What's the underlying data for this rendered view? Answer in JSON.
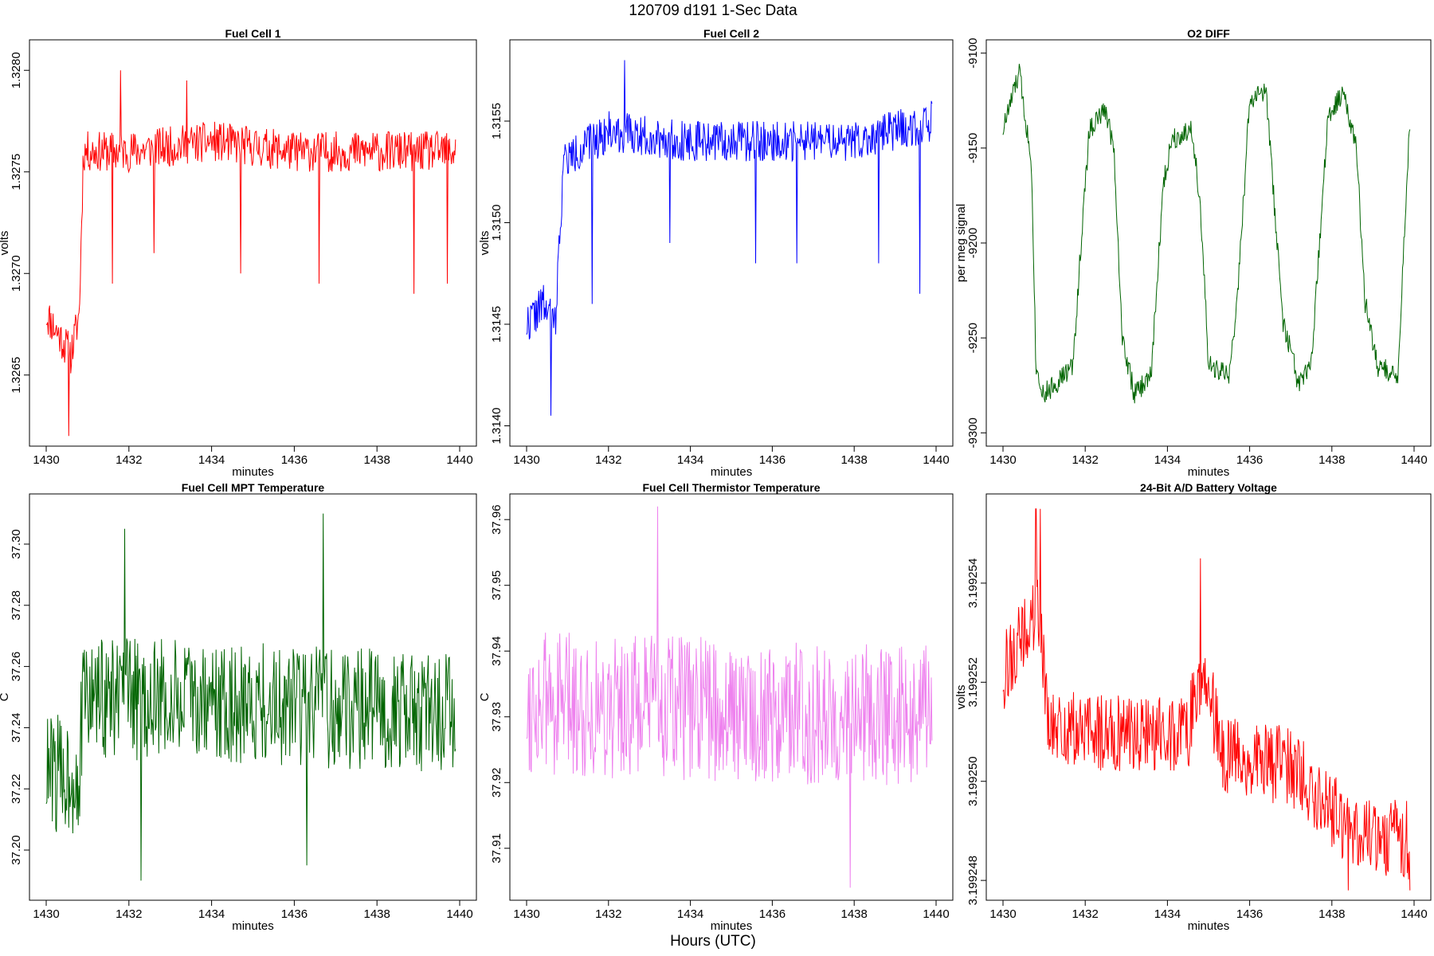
{
  "figure": {
    "suptitle": "120709   d191   1-Sec Data",
    "xlabel_main": "Hours (UTC)"
  },
  "chart_data": [
    {
      "type": "line",
      "title": "Fuel Cell 1",
      "xlabel": "minutes",
      "ylabel": "volts",
      "color": "#ff0000",
      "xlim": [
        1430,
        1440
      ],
      "ylim": [
        1.32615,
        1.32815
      ],
      "xticks": [
        1430,
        1432,
        1434,
        1436,
        1438,
        1440
      ],
      "yticks": [
        1.3265,
        1.327,
        1.3275,
        1.328
      ],
      "ytick_labels": [
        "1.3265",
        "1.3270",
        "1.3275",
        "1.3280"
      ],
      "anchors": [
        [
          1430,
          1.3268
        ],
        [
          1430.3,
          1.3267
        ],
        [
          1430.6,
          1.3266
        ],
        [
          1430.8,
          1.3268
        ],
        [
          1430.9,
          1.3276
        ],
        [
          1432,
          1.3276
        ],
        [
          1434,
          1.32765
        ],
        [
          1436,
          1.3276
        ],
        [
          1438,
          1.3276
        ],
        [
          1439.9,
          1.3276
        ]
      ],
      "noise": 0.0001,
      "seed": 11,
      "spikes": [
        [
          1430.55,
          1.3262
        ],
        [
          1431.6,
          1.32695
        ],
        [
          1432.6,
          1.3271
        ],
        [
          1434.7,
          1.327
        ],
        [
          1436.6,
          1.32695
        ],
        [
          1438.9,
          1.3269
        ],
        [
          1439.7,
          1.32695
        ],
        [
          1431.8,
          1.328
        ],
        [
          1433.4,
          1.32795
        ]
      ]
    },
    {
      "type": "line",
      "title": "Fuel Cell 2",
      "xlabel": "minutes",
      "ylabel": "volts",
      "color": "#0000ff",
      "xlim": [
        1430,
        1440
      ],
      "ylim": [
        1.3139,
        1.3159
      ],
      "xticks": [
        1430,
        1432,
        1434,
        1436,
        1438,
        1440
      ],
      "yticks": [
        1.314,
        1.3145,
        1.315,
        1.3155
      ],
      "ytick_labels": [
        "1.3140",
        "1.3145",
        "1.3150",
        "1.3155"
      ],
      "anchors": [
        [
          1430,
          1.3145
        ],
        [
          1430.4,
          1.3146
        ],
        [
          1430.7,
          1.3145
        ],
        [
          1430.9,
          1.3153
        ],
        [
          1432,
          1.31545
        ],
        [
          1434,
          1.3154
        ],
        [
          1436,
          1.3154
        ],
        [
          1438,
          1.3154
        ],
        [
          1439.9,
          1.3155
        ]
      ],
      "noise": 0.0001,
      "seed": 22,
      "spikes": [
        [
          1430.6,
          1.31405
        ],
        [
          1431.6,
          1.3146
        ],
        [
          1432.4,
          1.3158
        ],
        [
          1433.5,
          1.3149
        ],
        [
          1435.6,
          1.3148
        ],
        [
          1436.6,
          1.3148
        ],
        [
          1438.6,
          1.3148
        ],
        [
          1439.6,
          1.31465
        ],
        [
          1439.95,
          1.3157
        ]
      ]
    },
    {
      "type": "line",
      "title": "O2 DIFF",
      "xlabel": "minutes",
      "ylabel": "per meg signal",
      "color": "#006400",
      "xlim": [
        1430,
        1440
      ],
      "ylim": [
        -9307,
        -9093
      ],
      "xticks": [
        1430,
        1432,
        1434,
        1436,
        1438,
        1440
      ],
      "yticks": [
        -9300,
        -9250,
        -9200,
        -9150,
        -9100
      ],
      "ytick_labels": [
        "-9300",
        "-9250",
        "-9200",
        "-9150",
        "-9100"
      ],
      "anchors": [
        [
          1430,
          -9140
        ],
        [
          1430.4,
          -9110
        ],
        [
          1430.7,
          -9160
        ],
        [
          1430.8,
          -9265
        ],
        [
          1431,
          -9280
        ],
        [
          1431.7,
          -9265
        ],
        [
          1431.9,
          -9200
        ],
        [
          1432.1,
          -9140
        ],
        [
          1432.5,
          -9130
        ],
        [
          1432.7,
          -9150
        ],
        [
          1432.9,
          -9250
        ],
        [
          1433.2,
          -9280
        ],
        [
          1433.6,
          -9270
        ],
        [
          1433.9,
          -9170
        ],
        [
          1434.1,
          -9145
        ],
        [
          1434.6,
          -9140
        ],
        [
          1434.8,
          -9180
        ],
        [
          1435,
          -9265
        ],
        [
          1435.5,
          -9270
        ],
        [
          1435.7,
          -9230
        ],
        [
          1436,
          -9125
        ],
        [
          1436.4,
          -9120
        ],
        [
          1436.8,
          -9240
        ],
        [
          1437.2,
          -9275
        ],
        [
          1437.5,
          -9265
        ],
        [
          1437.7,
          -9200
        ],
        [
          1437.9,
          -9135
        ],
        [
          1438.3,
          -9120
        ],
        [
          1438.6,
          -9150
        ],
        [
          1438.8,
          -9230
        ],
        [
          1439.1,
          -9265
        ],
        [
          1439.6,
          -9270
        ],
        [
          1439.9,
          -9135
        ]
      ],
      "noise": 6,
      "seed": 33,
      "spikes": []
    },
    {
      "type": "line",
      "title": "Fuel Cell MPT Temperature",
      "xlabel": "minutes",
      "ylabel": "C",
      "color": "#006400",
      "xlim": [
        1430,
        1440
      ],
      "ylim": [
        37.1836,
        37.3164
      ],
      "xticks": [
        1430,
        1432,
        1434,
        1436,
        1438,
        1440
      ],
      "yticks": [
        37.2,
        37.22,
        37.24,
        37.26,
        37.28,
        37.3
      ],
      "ytick_labels": [
        "37.20",
        "37.22",
        "37.24",
        "37.26",
        "37.28",
        "37.30"
      ],
      "anchors": [
        [
          1430,
          37.225
        ],
        [
          1430.8,
          37.225
        ],
        [
          1430.9,
          37.25
        ],
        [
          1439.9,
          37.245
        ]
      ],
      "noise": 0.02,
      "seed": 44,
      "spikes": [
        [
          1431.9,
          37.305
        ],
        [
          1436.7,
          37.31
        ],
        [
          1432.3,
          37.19
        ],
        [
          1436.3,
          37.195
        ]
      ]
    },
    {
      "type": "line",
      "title": "Fuel Cell Thermistor Temperature",
      "xlabel": "minutes",
      "ylabel": "C",
      "color": "#ee82ee",
      "xlim": [
        1430,
        1440
      ],
      "ylim": [
        37.9021,
        37.9639
      ],
      "xticks": [
        1430,
        1432,
        1434,
        1436,
        1438,
        1440
      ],
      "yticks": [
        37.91,
        37.92,
        37.93,
        37.94,
        37.95,
        37.96
      ],
      "ytick_labels": [
        "37.91",
        "37.92",
        "37.93",
        "37.94",
        "37.95",
        "37.96"
      ],
      "anchors": [
        [
          1430,
          37.932
        ],
        [
          1435,
          37.931
        ],
        [
          1439.9,
          37.93
        ]
      ],
      "noise": 0.011,
      "seed": 55,
      "spikes": [
        [
          1433.2,
          37.962
        ],
        [
          1437.9,
          37.904
        ]
      ]
    },
    {
      "type": "line",
      "title": "24-Bit A/D Battery Voltage",
      "xlabel": "minutes",
      "ylabel": "volts",
      "color": "#ff0000",
      "xlim": [
        1430,
        1440
      ],
      "ylim": [
        3.1992476,
        3.1992558
      ],
      "xticks": [
        1430,
        1432,
        1434,
        1436,
        1438,
        1440
      ],
      "yticks": [
        3.199248,
        3.19925,
        3.199252,
        3.199254
      ],
      "ytick_labels": [
        "3.199248",
        "3.199250",
        "3.199252",
        "3.199254"
      ],
      "anchors": [
        [
          1430,
          3.1992522
        ],
        [
          1430.9,
          3.1992535
        ],
        [
          1431.1,
          3.199251
        ],
        [
          1434.5,
          3.199251
        ],
        [
          1434.9,
          3.1992525
        ],
        [
          1435.3,
          3.1992505
        ],
        [
          1437,
          3.1992503
        ],
        [
          1438.5,
          3.199249
        ],
        [
          1439.9,
          3.1992488
        ]
      ],
      "noise": 8e-07,
      "seed": 66,
      "spikes": [
        [
          1430.8,
          3.1992555
        ],
        [
          1430.9,
          3.1992555
        ],
        [
          1434.8,
          3.1992545
        ],
        [
          1438.4,
          3.1992478
        ],
        [
          1439.9,
          3.1992478
        ]
      ]
    }
  ]
}
